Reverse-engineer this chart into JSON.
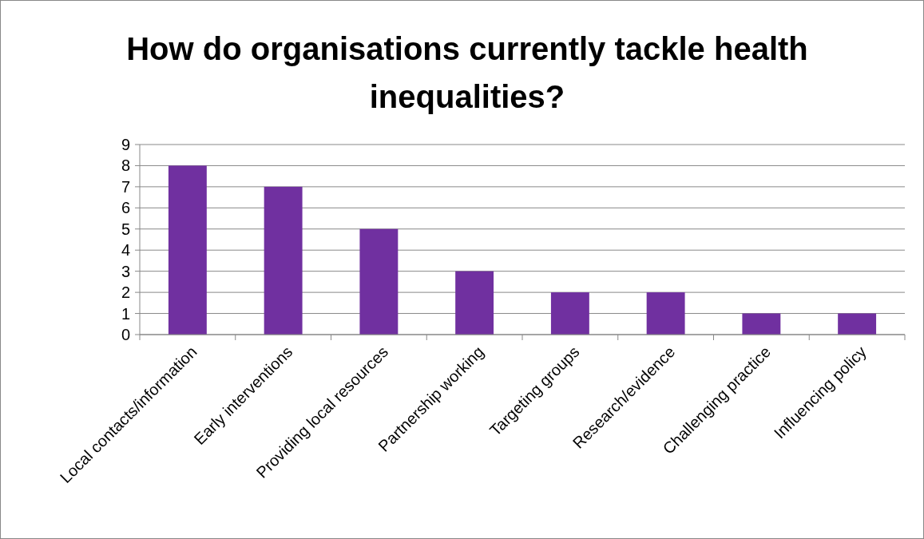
{
  "chart_data": {
    "type": "bar",
    "title": "How do organisations currently tackle health inequalities?",
    "categories": [
      "Local contacts/information",
      "Early interventions",
      "Providing local resources",
      "Partnership working",
      "Targeting groups",
      "Research/evidence",
      "Challenging practice",
      "Influencing policy"
    ],
    "values": [
      8,
      7,
      5,
      3,
      2,
      2,
      1,
      1
    ],
    "color": "#7030a0",
    "ylim": [
      0,
      9
    ],
    "yticks": [
      0,
      1,
      2,
      3,
      4,
      5,
      6,
      7,
      8,
      9
    ],
    "grid": "y"
  }
}
